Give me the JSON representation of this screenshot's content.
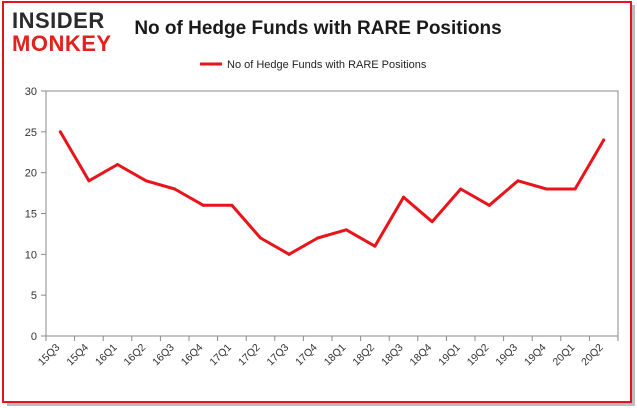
{
  "logo": {
    "line1": "INSIDER",
    "line2": "MONKEY",
    "color_dark": "#2b2b2b",
    "color_red": "#e2201c"
  },
  "chart_data": {
    "type": "line",
    "title": "No of Hedge Funds with RARE Positions",
    "xlabel": "",
    "ylabel": "",
    "categories": [
      "15Q3",
      "15Q4",
      "16Q1",
      "16Q2",
      "16Q3",
      "16Q4",
      "17Q1",
      "17Q2",
      "17Q3",
      "17Q4",
      "18Q1",
      "18Q2",
      "18Q3",
      "18Q4",
      "19Q1",
      "19Q2",
      "19Q3",
      "19Q4",
      "20Q1",
      "20Q2"
    ],
    "series": [
      {
        "name": "No of Hedge Funds with RARE Positions",
        "color": "#e8141a",
        "values": [
          25,
          19,
          21,
          19,
          18,
          16,
          16,
          12,
          10,
          12,
          13,
          11,
          17,
          14,
          18,
          16,
          19,
          18,
          18,
          24
        ]
      }
    ],
    "ylim": [
      0,
      30
    ],
    "yticks": [
      0,
      5,
      10,
      15,
      20,
      25,
      30
    ],
    "grid": false,
    "legend": "top-center",
    "frame_color": "#e8141a"
  }
}
